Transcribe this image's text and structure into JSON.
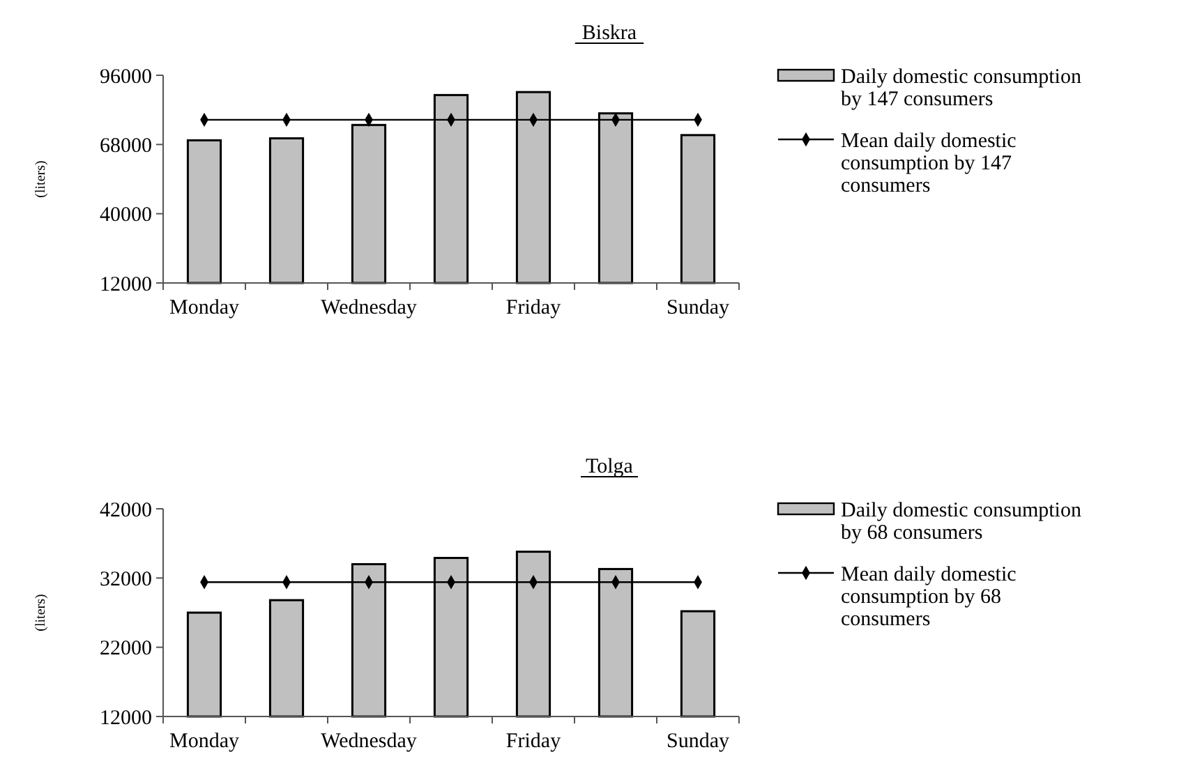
{
  "chart_data": [
    {
      "type": "bar",
      "title": "Biskra",
      "ylabel": "(liters)",
      "categories": [
        "Monday",
        null,
        "Wednesday",
        null,
        "Friday",
        null,
        "Sunday"
      ],
      "ylim": [
        12000,
        96000
      ],
      "yticks": [
        12000,
        40000,
        68000,
        96000
      ],
      "grid": false,
      "legend": "right",
      "series": [
        {
          "name": "Daily domestic consumption by 147 consumers",
          "color": "#c0c0c0",
          "values": [
            69700,
            70500,
            75900,
            88000,
            89200,
            80600,
            71800
          ]
        },
        {
          "name": "Mean daily domestic consumption by 147 consumers",
          "type": "line",
          "color": "#000000",
          "marker": "diamond",
          "values": [
            78000,
            78000,
            78000,
            78000,
            78000,
            78000,
            78000
          ]
        }
      ]
    },
    {
      "type": "bar",
      "title": "Tolga",
      "ylabel": "(liters)",
      "categories": [
        "Monday",
        null,
        "Wednesday",
        null,
        "Friday",
        null,
        "Sunday"
      ],
      "ylim": [
        12000,
        42000
      ],
      "yticks": [
        12000,
        22000,
        32000,
        42000
      ],
      "grid": false,
      "legend": "right",
      "series": [
        {
          "name": "Daily domestic consumption by 68 consumers",
          "color": "#c0c0c0",
          "values": [
            27000,
            28800,
            34000,
            34900,
            35800,
            33300,
            27200
          ]
        },
        {
          "name": "Mean daily domestic consumption by 68 consumers",
          "type": "line",
          "color": "#000000",
          "marker": "diamond",
          "values": [
            31400,
            31400,
            31400,
            31400,
            31400,
            31400,
            31400
          ]
        }
      ]
    }
  ]
}
